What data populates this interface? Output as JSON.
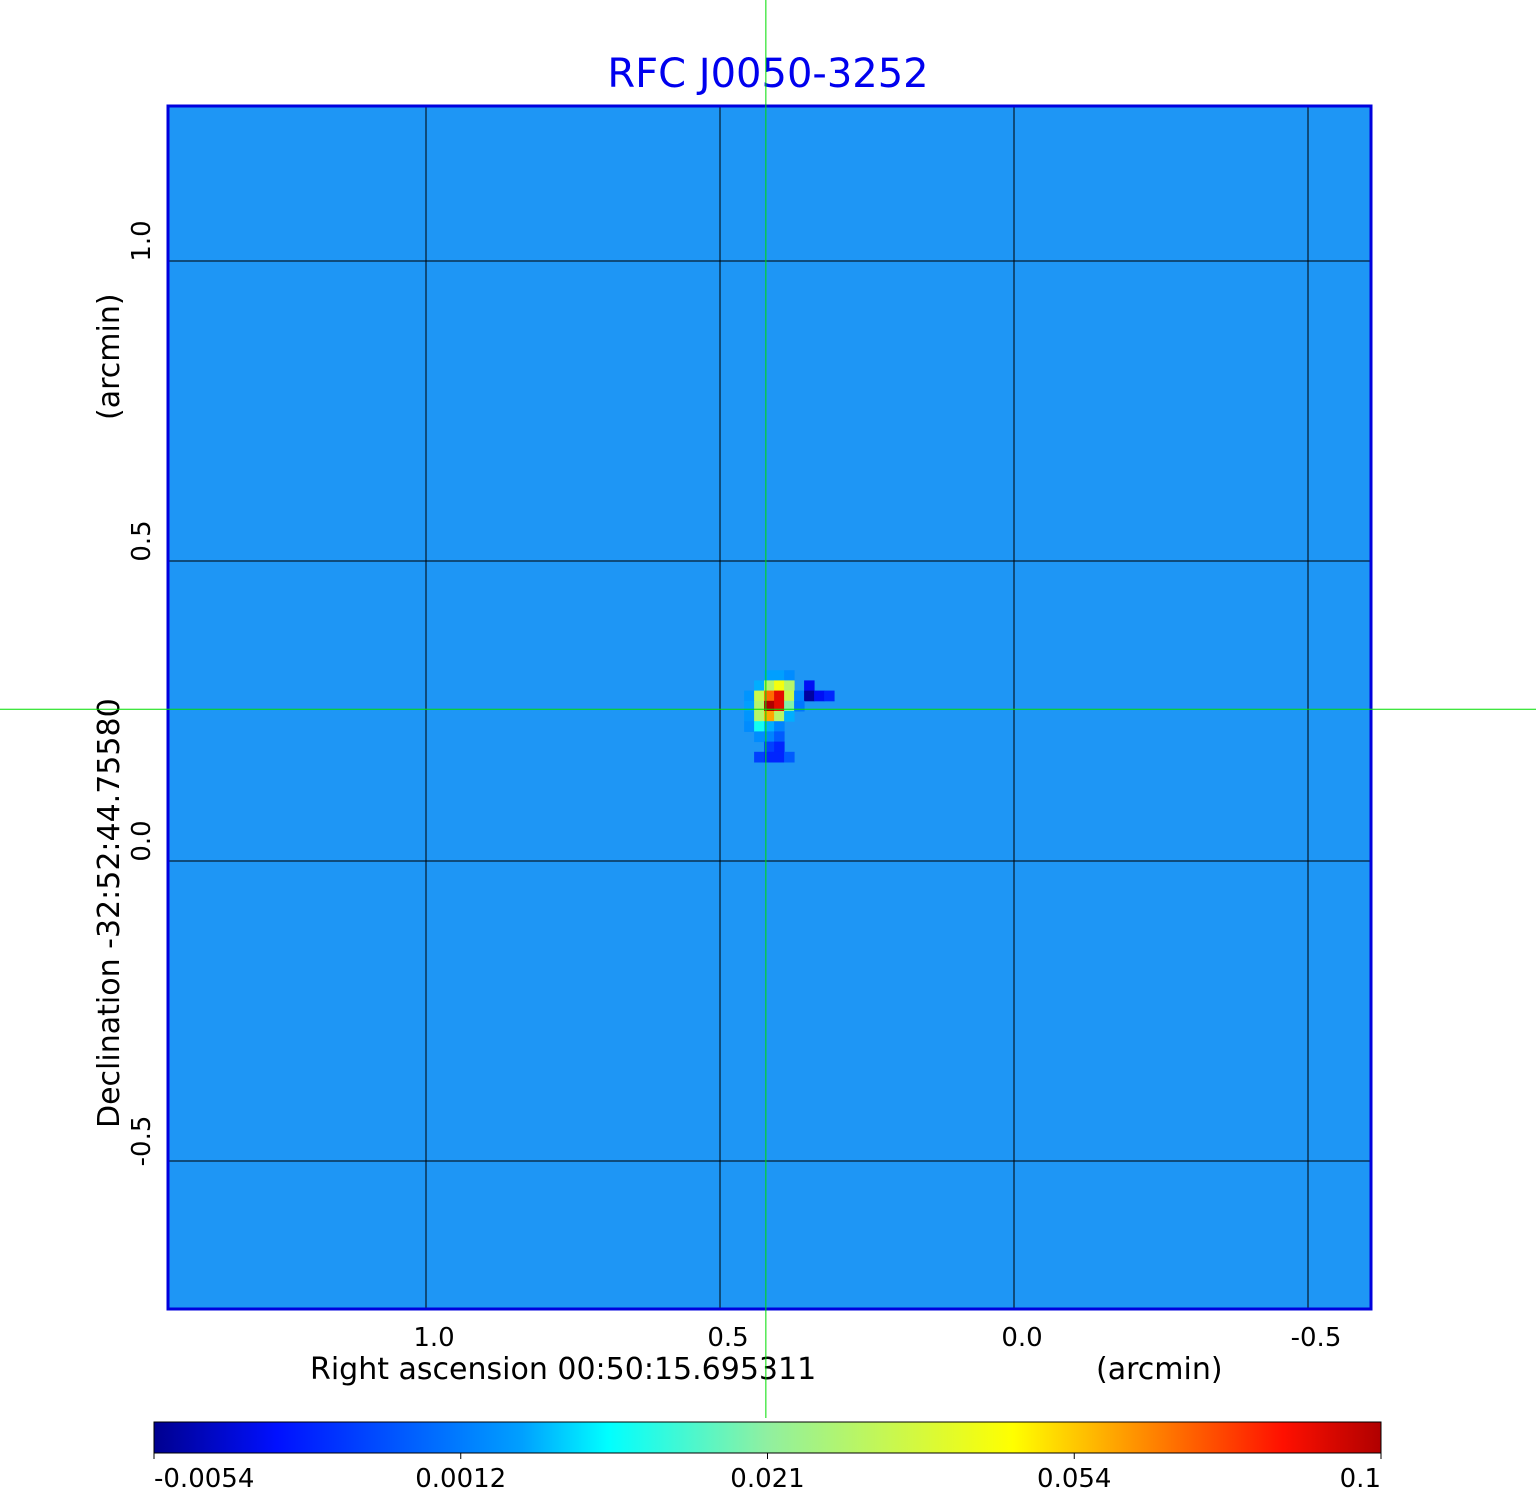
{
  "chart_data": {
    "type": "heatmap",
    "title": "RFC J0050-3252",
    "xlabel": "Right ascension  00:50:15.695311",
    "xunit": "(arcmin)",
    "ylabel": "Declination  -32:52:44.75580",
    "yunit": "(arcmin)",
    "xlim": [
      1.44,
      -0.6
    ],
    "ylim": [
      -0.745,
      1.26
    ],
    "x_reversed": true,
    "grid": true,
    "xticks": [
      {
        "value": 1.0,
        "label": "1.0"
      },
      {
        "value": 0.5,
        "label": "0.5"
      },
      {
        "value": 0.0,
        "label": "0.0"
      },
      {
        "value": -0.5,
        "label": "-0.5"
      }
    ],
    "yticks": [
      {
        "value": 1.0,
        "label": "1.0"
      },
      {
        "value": 0.5,
        "label": "0.5"
      },
      {
        "value": 0.0,
        "label": "0.0"
      },
      {
        "value": -0.5,
        "label": "-0.5"
      }
    ],
    "crosshair": {
      "ra": 0.422,
      "dec": 0.253
    },
    "background_value": 0.0012,
    "source_grid": {
      "ra_start": 0.459,
      "dec_start": 0.318,
      "cell": 0.017,
      "values": [
        [
          0.0012,
          0.0012,
          0.005,
          0.005,
          0.003,
          0.0012,
          0.0012,
          0.0012,
          0.0012
        ],
        [
          0.0012,
          0.006,
          0.03,
          0.045,
          0.03,
          0.0012,
          -0.003,
          0.0012,
          0.0012
        ],
        [
          0.004,
          0.035,
          0.07,
          0.09,
          0.035,
          0.002,
          -0.005,
          -0.003,
          -0.002
        ],
        [
          0.005,
          0.03,
          0.1,
          0.09,
          0.02,
          0.001,
          0.0012,
          0.0012,
          0.0012
        ],
        [
          0.004,
          0.03,
          0.06,
          0.03,
          0.006,
          0.0012,
          0.0012,
          0.0012,
          0.0012
        ],
        [
          0.003,
          0.012,
          0.006,
          0.002,
          0.0012,
          0.0012,
          0.0012,
          0.0012,
          0.0012
        ],
        [
          0.0012,
          0.003,
          0.002,
          0.0,
          0.0012,
          0.0012,
          0.0012,
          0.0012,
          0.0012
        ],
        [
          0.0012,
          0.0012,
          -0.001,
          -0.002,
          0.0012,
          0.0012,
          0.0012,
          0.0012,
          0.0012
        ],
        [
          0.0012,
          -0.001,
          -0.002,
          -0.002,
          0.0,
          0.0012,
          0.0012,
          0.0012,
          0.0012
        ]
      ]
    },
    "colorbar": {
      "colormap": "jet",
      "ticks": [
        {
          "value": -0.0054,
          "label": "-0.0054"
        },
        {
          "value": 0.0012,
          "label": "0.0012"
        },
        {
          "value": 0.021,
          "label": "0.021"
        },
        {
          "value": 0.054,
          "label": "0.054"
        },
        {
          "value": 0.1,
          "label": "0.1"
        }
      ]
    },
    "colors": {
      "title": "#0000ee",
      "frame": "#0000dd",
      "crosshair": "#00dd00",
      "grid": "#000000",
      "background": "#1e96f5"
    }
  }
}
